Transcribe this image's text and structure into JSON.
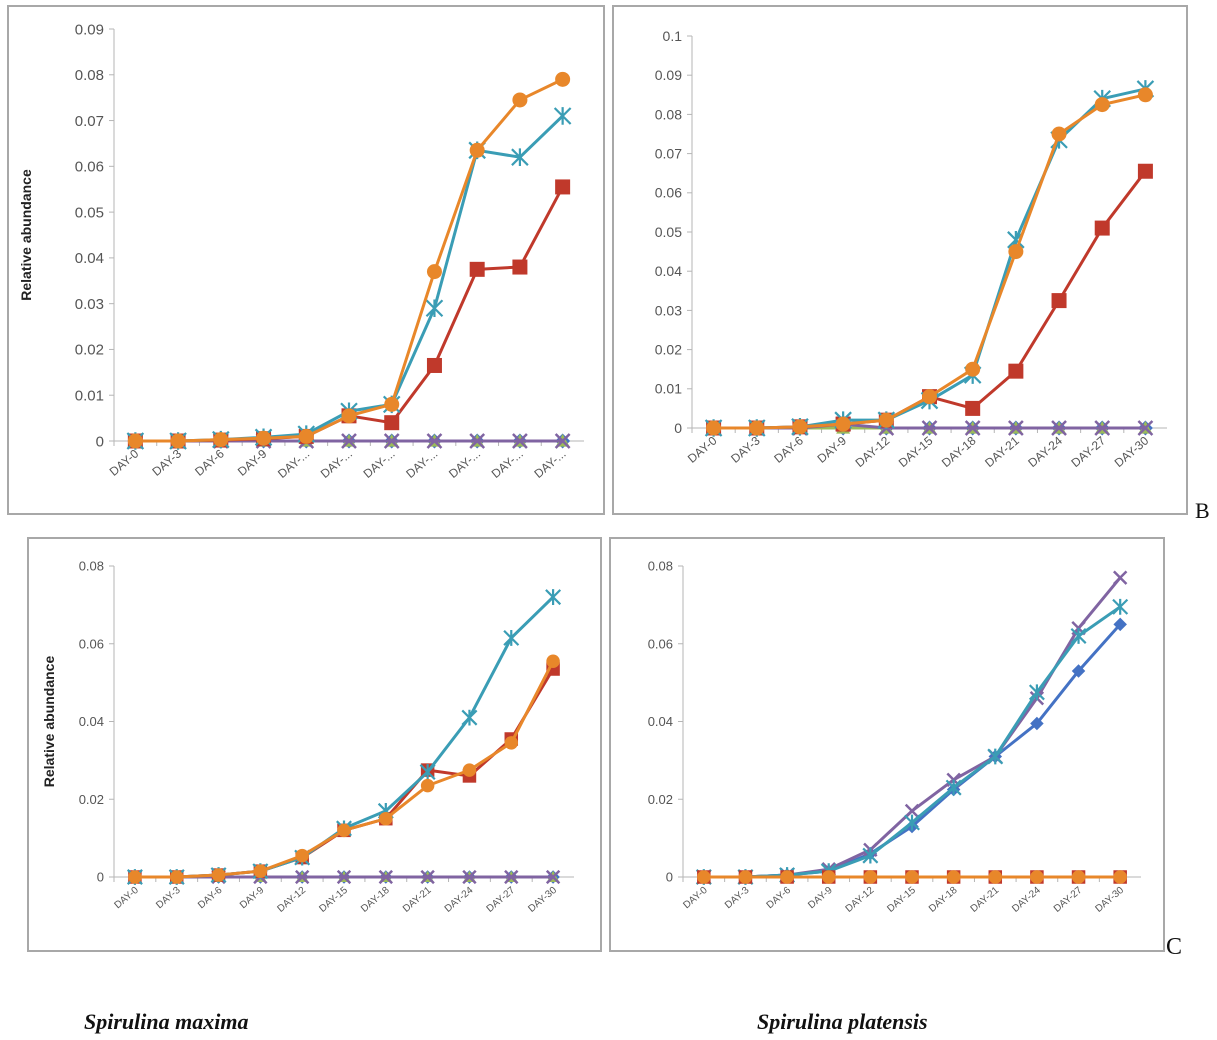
{
  "captions": {
    "left": "Spirulina maxima",
    "right": "Spirulina platensis"
  },
  "labels": {
    "b": "B",
    "c": "C"
  },
  "chart_data": [
    {
      "type": "line",
      "ylabel": "Relative abundance",
      "ylim": [
        0,
        0.09
      ],
      "yticks": [
        "0",
        "0.01",
        "0.02",
        "0.03",
        "0.04",
        "0.05",
        "0.06",
        "0.07",
        "0.08",
        "0.09"
      ],
      "categories": [
        "DAY-0",
        "DAY-3",
        "DAY-6",
        "DAY-9",
        "DAY-...",
        "DAY-...",
        "DAY-...",
        "DAY-...",
        "DAY-...",
        "DAY-...",
        "DAY-..."
      ],
      "series": [
        {
          "color": "#4472c4",
          "marker": "diamond",
          "values": [
            0,
            0,
            0,
            0,
            0,
            0,
            0,
            0,
            0,
            0,
            0
          ]
        },
        {
          "color": "#9bbb59",
          "marker": "triangle",
          "values": [
            0,
            0,
            0,
            0,
            0,
            0,
            0,
            0,
            0,
            0,
            0
          ]
        },
        {
          "color": "#8064a2",
          "marker": "x",
          "values": [
            0,
            0,
            0,
            0,
            0,
            0,
            0,
            0,
            0,
            0,
            0
          ]
        },
        {
          "color": "#c0392b",
          "marker": "square",
          "values": [
            0,
            0,
            0.0002,
            0.0005,
            0.001,
            0.0055,
            0.004,
            0.0165,
            0.0375,
            0.038,
            0.0555
          ]
        },
        {
          "color": "#3a9db5",
          "marker": "star",
          "values": [
            0,
            0,
            0.0003,
            0.0008,
            0.0015,
            0.0065,
            0.008,
            0.029,
            0.0635,
            0.062,
            0.071
          ]
        },
        {
          "color": "#e8872a",
          "marker": "circle",
          "values": [
            0,
            0,
            0.0003,
            0.0006,
            0.001,
            0.0055,
            0.008,
            0.037,
            0.0635,
            0.0745,
            0.079
          ]
        }
      ]
    },
    {
      "type": "line",
      "ylim": [
        0,
        0.1
      ],
      "yticks": [
        "0",
        "0.01",
        "0.02",
        "0.03",
        "0.04",
        "0.05",
        "0.06",
        "0.07",
        "0.08",
        "0.09",
        "0.1"
      ],
      "categories": [
        "DAY-0",
        "DAY-3",
        "DAY-6",
        "DAY-9",
        "DAY-12",
        "DAY-15",
        "DAY-18",
        "DAY-21",
        "DAY-24",
        "DAY-27",
        "DAY-30"
      ],
      "series": [
        {
          "color": "#4472c4",
          "marker": "diamond",
          "values": [
            0,
            0,
            0,
            0,
            0,
            0,
            0,
            0,
            0,
            0,
            0
          ]
        },
        {
          "color": "#9bbb59",
          "marker": "triangle",
          "values": [
            0,
            0,
            0,
            0,
            0,
            0,
            0,
            0,
            0,
            0,
            0
          ]
        },
        {
          "color": "#8064a2",
          "marker": "x",
          "values": [
            0,
            0,
            0,
            0.001,
            0,
            0,
            0,
            0,
            0,
            0,
            0
          ]
        },
        {
          "color": "#c0392b",
          "marker": "square",
          "values": [
            0,
            0,
            0.0003,
            0.001,
            0.002,
            0.008,
            0.005,
            0.0145,
            0.0325,
            0.051,
            0.0655
          ]
        },
        {
          "color": "#3a9db5",
          "marker": "star",
          "values": [
            0,
            0,
            0.0003,
            0.002,
            0.002,
            0.007,
            0.0135,
            0.048,
            0.0735,
            0.084,
            0.0865
          ]
        },
        {
          "color": "#e8872a",
          "marker": "circle",
          "values": [
            0,
            0,
            0.0003,
            0.001,
            0.002,
            0.008,
            0.015,
            0.045,
            0.075,
            0.0825,
            0.085
          ]
        }
      ]
    },
    {
      "type": "line",
      "ylabel": "Relative abundance",
      "ylim": [
        0,
        0.08
      ],
      "yticks": [
        "0",
        "0.02",
        "0.04",
        "0.06",
        "0.08"
      ],
      "categories": [
        "DAY-0",
        "DAY-3",
        "DAY-6",
        "DAY-9",
        "DAY-12",
        "DAY-15",
        "DAY-18",
        "DAY-21",
        "DAY-24",
        "DAY-27",
        "DAY-30"
      ],
      "series": [
        {
          "color": "#4472c4",
          "marker": "diamond",
          "values": [
            0,
            0,
            0,
            0,
            0,
            0,
            0,
            0,
            0,
            0,
            0
          ]
        },
        {
          "color": "#9bbb59",
          "marker": "triangle",
          "values": [
            0,
            0,
            0,
            0,
            0,
            0,
            0,
            0,
            0,
            0,
            0
          ]
        },
        {
          "color": "#8064a2",
          "marker": "x",
          "values": [
            0,
            0,
            0,
            0,
            0,
            0,
            0,
            0,
            0,
            0,
            0
          ]
        },
        {
          "color": "#c0392b",
          "marker": "square",
          "values": [
            0,
            0,
            0.0005,
            0.0015,
            0.005,
            0.012,
            0.015,
            0.0275,
            0.026,
            0.0355,
            0.0535
          ]
        },
        {
          "color": "#3a9db5",
          "marker": "star",
          "values": [
            0,
            0,
            0.0005,
            0.0015,
            0.005,
            0.0125,
            0.017,
            0.027,
            0.041,
            0.0615,
            0.072
          ]
        },
        {
          "color": "#e8872a",
          "marker": "circle",
          "values": [
            0,
            0,
            0.0005,
            0.0015,
            0.0055,
            0.012,
            0.015,
            0.0235,
            0.0275,
            0.0345,
            0.0555
          ]
        }
      ]
    },
    {
      "type": "line",
      "ylim": [
        0,
        0.08
      ],
      "yticks": [
        "0",
        "0.02",
        "0.04",
        "0.06",
        "0.08"
      ],
      "categories": [
        "DAY-0",
        "DAY-3",
        "DAY-6",
        "DAY-9",
        "DAY-12",
        "DAY-15",
        "DAY-18",
        "DAY-21",
        "DAY-24",
        "DAY-27",
        "DAY-30"
      ],
      "series": [
        {
          "color": "#4472c4",
          "marker": "diamond",
          "values": [
            0,
            0,
            0.0005,
            0.0015,
            0.006,
            0.013,
            0.0225,
            0.031,
            0.0395,
            0.053,
            0.065
          ]
        },
        {
          "color": "#8064a2",
          "marker": "x",
          "values": [
            0,
            0,
            0.0005,
            0.002,
            0.007,
            0.017,
            0.025,
            0.031,
            0.046,
            0.064,
            0.077
          ]
        },
        {
          "color": "#3a9db5",
          "marker": "star",
          "values": [
            0,
            0,
            0.0005,
            0.0015,
            0.0055,
            0.014,
            0.023,
            0.031,
            0.0475,
            0.062,
            0.0695
          ]
        },
        {
          "color": "#9bbb59",
          "marker": "triangle",
          "values": [
            0,
            0,
            0,
            0,
            0,
            0,
            0,
            0,
            0,
            0,
            0
          ]
        },
        {
          "color": "#c0392b",
          "marker": "square",
          "values": [
            0,
            0,
            0,
            0,
            0,
            0,
            0,
            0,
            0,
            0,
            0
          ]
        },
        {
          "color": "#e8872a",
          "marker": "circle",
          "values": [
            0,
            0,
            0,
            0,
            0,
            0,
            0,
            0,
            0,
            0,
            0
          ]
        }
      ]
    }
  ]
}
